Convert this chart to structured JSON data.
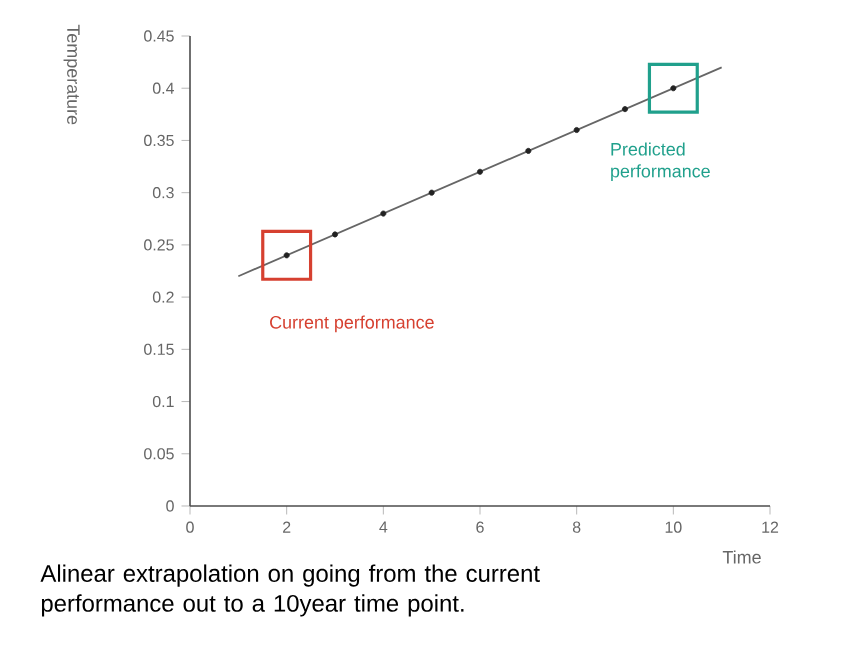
{
  "chart_data": {
    "type": "line",
    "xlabel": "Time",
    "ylabel": "Temperature",
    "xlim": [
      0,
      12
    ],
    "xticks": [
      0,
      2,
      4,
      6,
      8,
      10,
      12
    ],
    "ylim": [
      0,
      0.45
    ],
    "yticks": [
      0,
      0.05,
      0.1,
      0.15,
      0.2,
      0.25,
      0.3,
      0.35,
      0.4,
      0.45
    ],
    "series": [
      {
        "color": "#666666",
        "marker": "none",
        "x": [
          1,
          11
        ],
        "values": [
          0.22,
          0.42
        ]
      },
      {
        "type": "scatter",
        "marker": "circle",
        "color": "#222222",
        "x": [
          2,
          3,
          4,
          5,
          6,
          7,
          8,
          9,
          10
        ],
        "values": [
          0.24,
          0.26,
          0.28,
          0.3,
          0.32,
          0.34,
          0.36,
          0.38,
          0.4
        ]
      }
    ],
    "legend": false,
    "grid": false,
    "annotations": [
      "Current performance",
      "Predicted performance",
      "Alinear extrapolation on going from the current performance out to a 10year time point."
    ]
  }
}
